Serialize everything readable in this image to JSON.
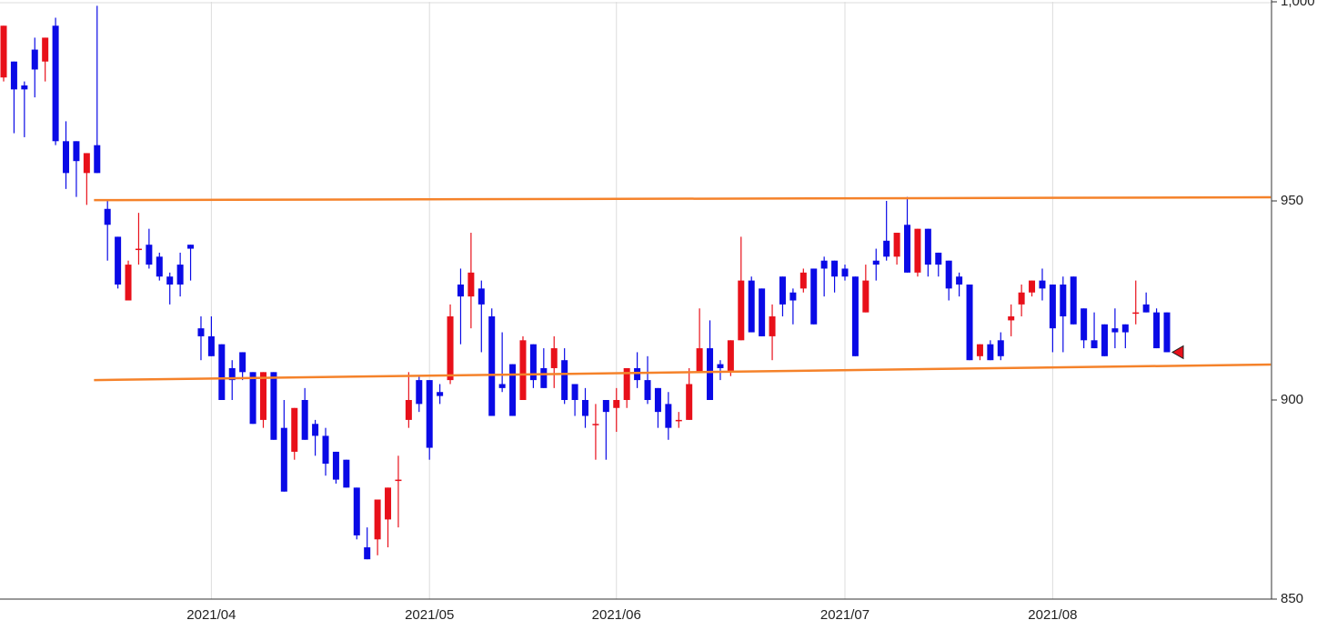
{
  "chart_data": {
    "type": "candlestick",
    "categories": [
      null,
      null,
      null,
      null,
      null,
      null,
      null,
      null,
      null,
      null,
      null,
      null,
      null,
      null,
      null,
      null,
      null,
      null,
      null,
      null,
      "2021/04",
      null,
      null,
      null,
      null,
      null,
      null,
      null,
      null,
      null,
      null,
      null,
      null,
      null,
      null,
      null,
      null,
      null,
      null,
      null,
      null,
      "2021/05",
      null,
      null,
      null,
      null,
      null,
      null,
      null,
      null,
      null,
      null,
      null,
      null,
      null,
      null,
      null,
      null,
      null,
      "2021/06",
      null,
      null,
      null,
      null,
      null,
      null,
      null,
      null,
      null,
      null,
      null,
      null,
      null,
      null,
      null,
      null,
      null,
      null,
      null,
      null,
      null,
      "2021/07",
      null,
      null,
      null,
      null,
      null,
      null,
      null,
      null,
      null,
      null,
      null,
      null,
      null,
      null,
      null,
      null,
      null,
      null,
      null,
      "2021/08",
      null,
      null,
      null,
      null,
      null,
      null,
      null,
      null,
      null,
      null,
      null
    ],
    "open": [
      981,
      985,
      979,
      988,
      985,
      994,
      965,
      965,
      957,
      964,
      948,
      941,
      925,
      938,
      939,
      936,
      931,
      934,
      939,
      918,
      916,
      914,
      908,
      912,
      907,
      895,
      907,
      893,
      887,
      900,
      894,
      891,
      887,
      885,
      878,
      863,
      865,
      870,
      880,
      895,
      905,
      905,
      902,
      905,
      929,
      926,
      928,
      921,
      904,
      909,
      900,
      914,
      908,
      908,
      910,
      904,
      900,
      894,
      900,
      898,
      900,
      908,
      905,
      903,
      899,
      895,
      895,
      907,
      913,
      909,
      907,
      915,
      930,
      928,
      916,
      931,
      927,
      928,
      933,
      935,
      935,
      933,
      931,
      922,
      935,
      940,
      936,
      944,
      932,
      943,
      937,
      935,
      931,
      929,
      911,
      914,
      915,
      920,
      924,
      927,
      930,
      929,
      929,
      931,
      923,
      915,
      919,
      918,
      919,
      922,
      924,
      922,
      922
    ],
    "high": [
      994,
      985,
      980,
      991,
      991,
      996,
      970,
      965,
      962,
      999,
      950,
      941,
      935,
      947,
      943,
      937,
      932,
      937,
      939,
      921,
      921,
      914,
      910,
      912,
      907,
      907,
      907,
      900,
      898,
      903,
      895,
      893,
      887,
      885,
      878,
      868,
      875,
      878,
      886,
      907,
      906,
      905,
      904,
      924,
      933,
      942,
      930,
      923,
      917,
      909,
      916,
      914,
      913,
      916,
      913,
      904,
      903,
      899,
      900,
      903,
      908,
      912,
      911,
      903,
      902,
      897,
      908,
      923,
      920,
      910,
      915,
      941,
      931,
      928,
      924,
      931,
      928,
      933,
      933,
      936,
      935,
      934,
      931,
      934,
      938,
      950,
      942,
      951,
      943,
      943,
      937,
      935,
      932,
      929,
      914,
      915,
      917,
      924,
      929,
      930,
      933,
      929,
      931,
      931,
      923,
      922,
      919,
      923,
      919,
      930,
      927,
      923,
      922
    ],
    "low": [
      980,
      967,
      966,
      976,
      980,
      964,
      953,
      951,
      949,
      957,
      935,
      928,
      925,
      934,
      933,
      930,
      924,
      926,
      930,
      910,
      911,
      900,
      900,
      905,
      894,
      893,
      890,
      877,
      885,
      890,
      886,
      881,
      879,
      878,
      865,
      860,
      861,
      863,
      868,
      893,
      897,
      885,
      899,
      904,
      914,
      918,
      912,
      896,
      902,
      896,
      900,
      903,
      903,
      903,
      899,
      896,
      893,
      885,
      885,
      892,
      898,
      903,
      899,
      893,
      890,
      893,
      895,
      907,
      900,
      905,
      906,
      915,
      917,
      916,
      910,
      921,
      919,
      927,
      919,
      926,
      927,
      930,
      911,
      922,
      930,
      935,
      934,
      932,
      931,
      931,
      931,
      925,
      926,
      910,
      910,
      910,
      910,
      916,
      921,
      926,
      925,
      912,
      912,
      919,
      913,
      913,
      911,
      913,
      913,
      919,
      922,
      913,
      912
    ],
    "close": [
      994,
      978,
      978,
      983,
      991,
      965,
      957,
      960,
      962,
      957,
      944,
      929,
      934,
      938,
      934,
      931,
      929,
      929,
      938,
      916,
      911,
      900,
      905,
      907,
      894,
      907,
      890,
      877,
      898,
      890,
      891,
      884,
      880,
      878,
      866,
      860,
      875,
      878,
      880,
      900,
      899,
      888,
      901,
      921,
      926,
      932,
      924,
      896,
      903,
      896,
      915,
      905,
      903,
      913,
      900,
      900,
      896,
      894,
      897,
      900,
      908,
      905,
      900,
      897,
      893,
      895,
      904,
      913,
      900,
      908,
      915,
      930,
      917,
      916,
      921,
      924,
      925,
      932,
      919,
      933,
      931,
      931,
      911,
      930,
      934,
      936,
      942,
      932,
      943,
      934,
      934,
      928,
      929,
      910,
      914,
      910,
      911,
      921,
      927,
      930,
      928,
      918,
      921,
      919,
      915,
      913,
      911,
      917,
      917,
      922,
      922,
      913,
      912
    ],
    "up_color": "#e8101a",
    "down_color": "#0a0ae6",
    "xlim": [
      -0.35,
      122.07
    ],
    "ylim": [
      850,
      1000
    ],
    "yticks": [
      {
        "value": 1000,
        "label": "1,000"
      },
      950,
      900,
      850
    ],
    "grid": "x",
    "last_price_marker": true,
    "trendlines": [
      {
        "color": "#f5822a",
        "x": [
          8.7,
          122
        ],
        "values": [
          950.2,
          950.9
        ]
      },
      {
        "color": "#f5822a",
        "x": [
          8.7,
          122
        ],
        "values": [
          905,
          908.9
        ]
      }
    ]
  }
}
